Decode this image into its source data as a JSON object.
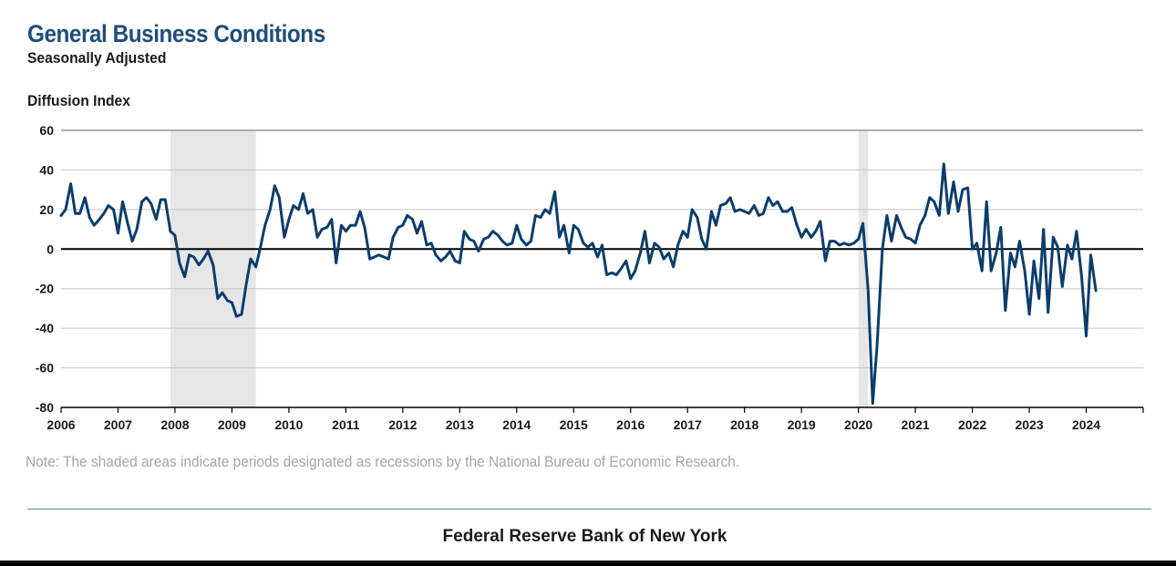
{
  "chart_data": {
    "type": "line",
    "title": "General Business Conditions",
    "subtitle": "Seasonally Adjusted",
    "ylabel": "Diffusion Index",
    "xlabel": "",
    "ylim": [
      -80,
      60
    ],
    "yticks": [
      60,
      40,
      20,
      0,
      -20,
      -40,
      -60,
      -80
    ],
    "x_start_year": 2006,
    "x_end_year": 2025,
    "xtick_labels": [
      "2006",
      "2007",
      "2008",
      "2009",
      "2010",
      "2011",
      "2012",
      "2013",
      "2014",
      "2015",
      "2016",
      "2017",
      "2018",
      "2019",
      "2020",
      "2021",
      "2022",
      "2023",
      "2024"
    ],
    "line_color": "#0b3d6b",
    "recession_color": "#e6e6e6",
    "recessions": [
      {
        "start": 2007.92,
        "end": 2009.42
      },
      {
        "start": 2020.0,
        "end": 2020.17
      }
    ],
    "series": [
      {
        "name": "General Business Conditions",
        "points": [
          [
            2006.0,
            17
          ],
          [
            2006.08,
            20
          ],
          [
            2006.17,
            33
          ],
          [
            2006.25,
            18
          ],
          [
            2006.33,
            18
          ],
          [
            2006.42,
            26
          ],
          [
            2006.5,
            16
          ],
          [
            2006.58,
            12
          ],
          [
            2006.67,
            15
          ],
          [
            2006.75,
            18
          ],
          [
            2006.83,
            22
          ],
          [
            2006.92,
            20
          ],
          [
            2007.0,
            8
          ],
          [
            2007.08,
            24
          ],
          [
            2007.17,
            13
          ],
          [
            2007.25,
            4
          ],
          [
            2007.33,
            10
          ],
          [
            2007.42,
            24
          ],
          [
            2007.5,
            26
          ],
          [
            2007.58,
            23
          ],
          [
            2007.67,
            15
          ],
          [
            2007.75,
            25
          ],
          [
            2007.83,
            25
          ],
          [
            2007.92,
            9
          ],
          [
            2008.0,
            7
          ],
          [
            2008.08,
            -7
          ],
          [
            2008.17,
            -14
          ],
          [
            2008.25,
            -3
          ],
          [
            2008.33,
            -4
          ],
          [
            2008.42,
            -8
          ],
          [
            2008.5,
            -5
          ],
          [
            2008.58,
            -1
          ],
          [
            2008.67,
            -8
          ],
          [
            2008.75,
            -25
          ],
          [
            2008.83,
            -22
          ],
          [
            2008.92,
            -26
          ],
          [
            2009.0,
            -27
          ],
          [
            2009.08,
            -34
          ],
          [
            2009.17,
            -33
          ],
          [
            2009.25,
            -18
          ],
          [
            2009.33,
            -5
          ],
          [
            2009.42,
            -9
          ],
          [
            2009.5,
            1
          ],
          [
            2009.58,
            12
          ],
          [
            2009.67,
            20
          ],
          [
            2009.75,
            32
          ],
          [
            2009.83,
            26
          ],
          [
            2009.92,
            6
          ],
          [
            2010.0,
            15
          ],
          [
            2010.08,
            22
          ],
          [
            2010.17,
            20
          ],
          [
            2010.25,
            28
          ],
          [
            2010.33,
            18
          ],
          [
            2010.42,
            20
          ],
          [
            2010.5,
            6
          ],
          [
            2010.58,
            10
          ],
          [
            2010.67,
            11
          ],
          [
            2010.75,
            15
          ],
          [
            2010.83,
            -7
          ],
          [
            2010.92,
            12
          ],
          [
            2011.0,
            9
          ],
          [
            2011.08,
            12
          ],
          [
            2011.17,
            12
          ],
          [
            2011.25,
            19
          ],
          [
            2011.33,
            11
          ],
          [
            2011.42,
            -5
          ],
          [
            2011.5,
            -4
          ],
          [
            2011.58,
            -3
          ],
          [
            2011.67,
            -4
          ],
          [
            2011.75,
            -5
          ],
          [
            2011.83,
            6
          ],
          [
            2011.92,
            11
          ],
          [
            2012.0,
            12
          ],
          [
            2012.08,
            17
          ],
          [
            2012.17,
            15
          ],
          [
            2012.25,
            8
          ],
          [
            2012.33,
            14
          ],
          [
            2012.42,
            2
          ],
          [
            2012.5,
            3
          ],
          [
            2012.58,
            -3
          ],
          [
            2012.67,
            -6
          ],
          [
            2012.75,
            -4
          ],
          [
            2012.83,
            -1
          ],
          [
            2012.92,
            -6
          ],
          [
            2013.0,
            -7
          ],
          [
            2013.08,
            9
          ],
          [
            2013.17,
            5
          ],
          [
            2013.25,
            4
          ],
          [
            2013.33,
            -1
          ],
          [
            2013.42,
            5
          ],
          [
            2013.5,
            6
          ],
          [
            2013.58,
            9
          ],
          [
            2013.67,
            7
          ],
          [
            2013.75,
            4
          ],
          [
            2013.83,
            2
          ],
          [
            2013.92,
            3
          ],
          [
            2014.0,
            12
          ],
          [
            2014.08,
            5
          ],
          [
            2014.17,
            2
          ],
          [
            2014.25,
            4
          ],
          [
            2014.33,
            17
          ],
          [
            2014.42,
            16
          ],
          [
            2014.5,
            20
          ],
          [
            2014.58,
            18
          ],
          [
            2014.67,
            29
          ],
          [
            2014.75,
            6
          ],
          [
            2014.83,
            12
          ],
          [
            2014.92,
            -2
          ],
          [
            2015.0,
            12
          ],
          [
            2015.08,
            10
          ],
          [
            2015.17,
            3
          ],
          [
            2015.25,
            1
          ],
          [
            2015.33,
            3
          ],
          [
            2015.42,
            -4
          ],
          [
            2015.5,
            2
          ],
          [
            2015.58,
            -13
          ],
          [
            2015.67,
            -12
          ],
          [
            2015.75,
            -13
          ],
          [
            2015.83,
            -10
          ],
          [
            2015.92,
            -6
          ],
          [
            2016.0,
            -15
          ],
          [
            2016.08,
            -11
          ],
          [
            2016.17,
            -2
          ],
          [
            2016.25,
            9
          ],
          [
            2016.33,
            -7
          ],
          [
            2016.42,
            3
          ],
          [
            2016.5,
            1
          ],
          [
            2016.58,
            -5
          ],
          [
            2016.67,
            -2
          ],
          [
            2016.75,
            -9
          ],
          [
            2016.83,
            2
          ],
          [
            2016.92,
            9
          ],
          [
            2017.0,
            6
          ],
          [
            2017.08,
            20
          ],
          [
            2017.17,
            16
          ],
          [
            2017.25,
            5
          ],
          [
            2017.33,
            0
          ],
          [
            2017.42,
            19
          ],
          [
            2017.5,
            12
          ],
          [
            2017.58,
            22
          ],
          [
            2017.67,
            23
          ],
          [
            2017.75,
            26
          ],
          [
            2017.83,
            19
          ],
          [
            2017.92,
            20
          ],
          [
            2018.0,
            19
          ],
          [
            2018.08,
            18
          ],
          [
            2018.17,
            22
          ],
          [
            2018.25,
            17
          ],
          [
            2018.33,
            18
          ],
          [
            2018.42,
            26
          ],
          [
            2018.5,
            22
          ],
          [
            2018.58,
            24
          ],
          [
            2018.67,
            19
          ],
          [
            2018.75,
            19
          ],
          [
            2018.83,
            21
          ],
          [
            2018.92,
            12
          ],
          [
            2019.0,
            6
          ],
          [
            2019.08,
            10
          ],
          [
            2019.17,
            6
          ],
          [
            2019.25,
            9
          ],
          [
            2019.33,
            14
          ],
          [
            2019.42,
            -6
          ],
          [
            2019.5,
            4
          ],
          [
            2019.58,
            4
          ],
          [
            2019.67,
            2
          ],
          [
            2019.75,
            3
          ],
          [
            2019.83,
            2
          ],
          [
            2019.92,
            3
          ],
          [
            2020.0,
            5
          ],
          [
            2020.08,
            13
          ],
          [
            2020.17,
            -21
          ],
          [
            2020.25,
            -78
          ],
          [
            2020.33,
            -48
          ],
          [
            2020.42,
            0
          ],
          [
            2020.5,
            17
          ],
          [
            2020.58,
            4
          ],
          [
            2020.67,
            17
          ],
          [
            2020.75,
            11
          ],
          [
            2020.83,
            6
          ],
          [
            2020.92,
            5
          ],
          [
            2021.0,
            3
          ],
          [
            2021.08,
            12
          ],
          [
            2021.17,
            17
          ],
          [
            2021.25,
            26
          ],
          [
            2021.33,
            24
          ],
          [
            2021.42,
            17
          ],
          [
            2021.5,
            43
          ],
          [
            2021.58,
            18
          ],
          [
            2021.67,
            34
          ],
          [
            2021.75,
            19
          ],
          [
            2021.83,
            30
          ],
          [
            2021.92,
            31
          ],
          [
            2022.0,
            0
          ],
          [
            2022.08,
            3
          ],
          [
            2022.17,
            -11
          ],
          [
            2022.25,
            24
          ],
          [
            2022.33,
            -11
          ],
          [
            2022.42,
            -2
          ],
          [
            2022.5,
            11
          ],
          [
            2022.58,
            -31
          ],
          [
            2022.67,
            -2
          ],
          [
            2022.75,
            -9
          ],
          [
            2022.83,
            4
          ],
          [
            2022.92,
            -11
          ],
          [
            2023.0,
            -33
          ],
          [
            2023.08,
            -6
          ],
          [
            2023.17,
            -25
          ],
          [
            2023.25,
            10
          ],
          [
            2023.33,
            -32
          ],
          [
            2023.42,
            6
          ],
          [
            2023.5,
            1
          ],
          [
            2023.58,
            -19
          ],
          [
            2023.67,
            2
          ],
          [
            2023.75,
            -5
          ],
          [
            2023.83,
            9
          ],
          [
            2023.92,
            -14
          ],
          [
            2024.0,
            -44
          ],
          [
            2024.08,
            -3
          ],
          [
            2024.17,
            -21
          ]
        ]
      }
    ]
  },
  "note": "Note: The shaded areas indicate periods designated as recessions by the National Bureau of Economic Research.",
  "footer": "Federal Reserve Bank of New York"
}
